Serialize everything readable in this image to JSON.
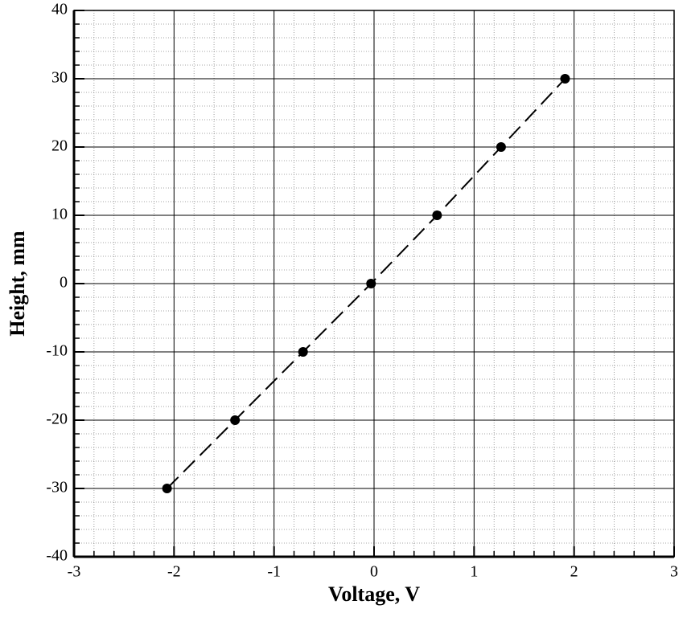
{
  "chart_data": {
    "type": "line",
    "x_label": "Voltage, V",
    "y_label": "Height, mm",
    "x": [
      -2.07,
      -1.39,
      -0.71,
      -0.03,
      0.63,
      1.27,
      1.91
    ],
    "series": [
      {
        "color": "#000000",
        "values": [
          -30,
          -20,
          -10,
          0,
          10,
          20,
          30
        ]
      }
    ],
    "xlim": [
      -3,
      3
    ],
    "ylim": [
      -40,
      40
    ],
    "xticks": [
      -3,
      -2,
      -1,
      0,
      1,
      2,
      3
    ],
    "yticks": [
      -40,
      -30,
      -20,
      -10,
      0,
      10,
      20,
      30,
      40
    ],
    "grid": true,
    "minor_grid_divisions": 5,
    "line_style": "dashed",
    "markers": true
  }
}
